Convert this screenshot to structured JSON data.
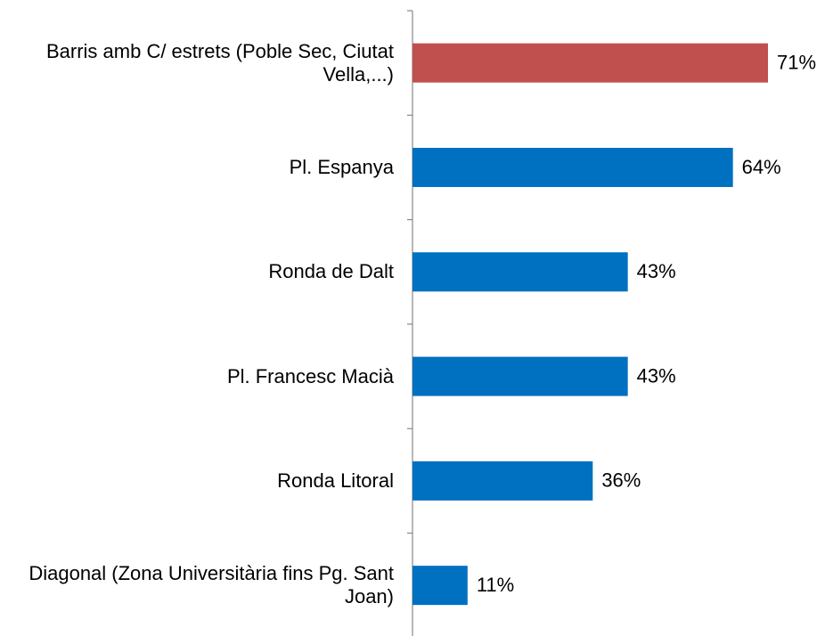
{
  "chart_data": {
    "type": "bar",
    "orientation": "horizontal",
    "categories": [
      "Barris amb C/ estrets (Poble Sec, Ciutat Vella,...)",
      "Pl. Espanya",
      "Ronda de Dalt",
      "Pl. Francesc Macià",
      "Ronda Litoral",
      "Diagonal (Zona Universitària fins Pg. Sant Joan)"
    ],
    "values": [
      71,
      64,
      43,
      43,
      36,
      11
    ],
    "value_labels": [
      "71%",
      "64%",
      "43%",
      "43%",
      "36%",
      "11%"
    ],
    "colors": [
      "#c0504d",
      "#0070c0",
      "#0070c0",
      "#0070c0",
      "#0070c0",
      "#0070c0"
    ]
  }
}
